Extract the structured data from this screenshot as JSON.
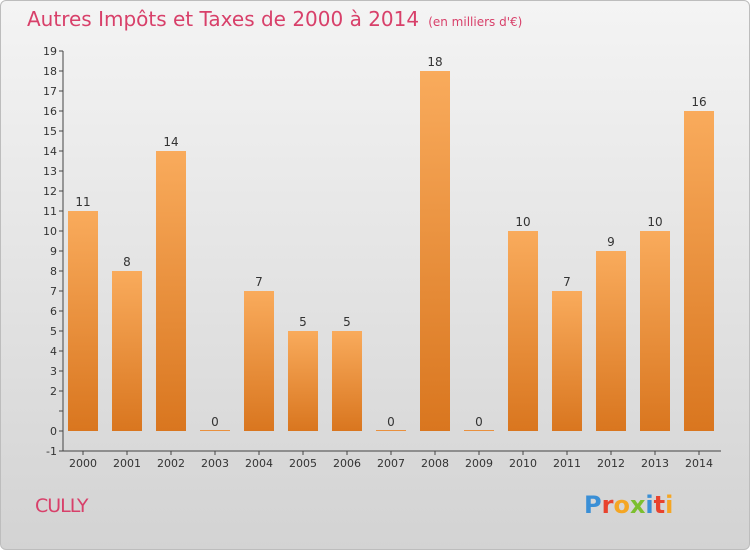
{
  "title": "Autres Impôts et Taxes de 2000 à 2014",
  "unit_note": "(en milliers d'€)",
  "commune": "CULLY",
  "logo": {
    "letters": [
      {
        "ch": "P",
        "color": "#3a8fd6"
      },
      {
        "ch": "r",
        "color": "#e8432e"
      },
      {
        "ch": "o",
        "color": "#f5a623"
      },
      {
        "ch": "x",
        "color": "#7cbf2f"
      },
      {
        "ch": "i",
        "color": "#3a8fd6"
      },
      {
        "ch": "t",
        "color": "#e8432e"
      },
      {
        "ch": "i",
        "color": "#f5a623"
      }
    ]
  },
  "colors": {
    "bar_top": "#f9ab5c",
    "bar_bottom": "#d9761f",
    "accent": "#d8406a"
  },
  "chart_data": {
    "type": "bar",
    "title": "Autres Impôts et Taxes de 2000 à 2014",
    "subtitle": "(en milliers d'€)",
    "xlabel": "",
    "ylabel": "",
    "categories": [
      "2000",
      "2001",
      "2002",
      "2003",
      "2004",
      "2005",
      "2006",
      "2007",
      "2008",
      "2009",
      "2010",
      "2011",
      "2012",
      "2013",
      "2014"
    ],
    "values": [
      11,
      8,
      14,
      0,
      7,
      5,
      5,
      0,
      18,
      0,
      10,
      7,
      9,
      10,
      16
    ],
    "ylim": [
      -1,
      19
    ],
    "yticks": [
      -1,
      0,
      1,
      2,
      3,
      4,
      5,
      6,
      7,
      8,
      9,
      10,
      11,
      12,
      13,
      14,
      15,
      16,
      17,
      18,
      19
    ],
    "ytick_labels": [
      "-1",
      "0",
      "",
      "2",
      "3",
      "4",
      "5",
      "6",
      "7",
      "8",
      "9",
      "10",
      "11",
      "12",
      "13",
      "14",
      "15",
      "16",
      "17",
      "18",
      "19"
    ],
    "grid": false,
    "legend": "none"
  }
}
